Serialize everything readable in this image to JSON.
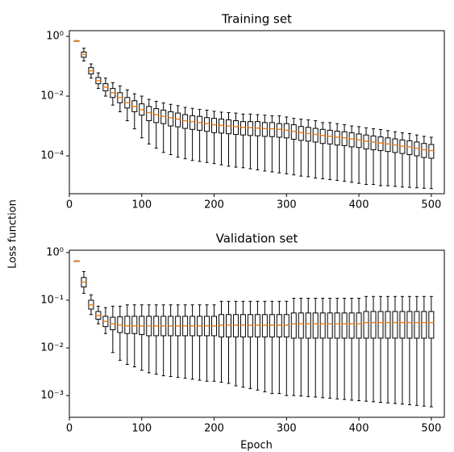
{
  "ylabel": "Loss function",
  "xlabel": "Epoch",
  "chart_data": [
    {
      "type": "box",
      "title": "Training set",
      "yscale": "log",
      "color": "#000000",
      "median_color": "#ff7f0e",
      "xlim": [
        0,
        518
      ],
      "xticks": [
        0,
        100,
        200,
        300,
        400,
        500
      ],
      "ylim": [
        5.4e-06,
        1.55
      ],
      "yticks": [
        {
          "value": 1,
          "label": "10⁰"
        },
        {
          "value": 0.01,
          "label": "10⁻²"
        },
        {
          "value": 0.0001,
          "label": "10⁻⁴"
        }
      ],
      "x": [
        10,
        20,
        30,
        40,
        50,
        60,
        70,
        80,
        90,
        100,
        110,
        120,
        130,
        140,
        150,
        160,
        170,
        180,
        190,
        200,
        210,
        220,
        230,
        240,
        250,
        260,
        270,
        280,
        290,
        300,
        310,
        320,
        330,
        340,
        350,
        360,
        370,
        380,
        390,
        400,
        410,
        420,
        430,
        440,
        450,
        460,
        470,
        480,
        490,
        500
      ],
      "low": [
        0.68,
        0.15,
        0.04,
        0.018,
        0.01,
        0.005,
        0.003,
        0.0015,
        0.0008,
        0.0004,
        0.00025,
        0.00018,
        0.00013,
        0.00011,
        9e-05,
        8e-05,
        7e-05,
        6.5e-05,
        6e-05,
        5.5e-05,
        5e-05,
        4.5e-05,
        4.2e-05,
        4e-05,
        3.7e-05,
        3.4e-05,
        3.1e-05,
        2.9e-05,
        2.7e-05,
        2.5e-05,
        2.3e-05,
        2.1e-05,
        2e-05,
        1.8e-05,
        1.7e-05,
        1.6e-05,
        1.5e-05,
        1.4e-05,
        1.3e-05,
        1.2e-05,
        1.1e-05,
        1.1e-05,
        1e-05,
        1e-05,
        9.5e-06,
        9e-06,
        8.8e-06,
        8.5e-06,
        8.2e-06,
        8e-06
      ],
      "q1": [
        0.69,
        0.2,
        0.055,
        0.026,
        0.015,
        0.009,
        0.006,
        0.004,
        0.003,
        0.0023,
        0.0015,
        0.0013,
        0.0012,
        0.001,
        0.00094,
        0.00083,
        0.00077,
        0.00072,
        0.00066,
        0.0006,
        0.00058,
        0.00055,
        0.00052,
        0.0005,
        0.00048,
        0.00047,
        0.00045,
        0.00044,
        0.00042,
        0.0004,
        0.00036,
        0.00033,
        0.00031,
        0.00029,
        0.00026,
        0.00025,
        0.00023,
        0.00022,
        0.0002,
        0.00019,
        0.00017,
        0.00016,
        0.00015,
        0.00014,
        0.00013,
        0.00012,
        0.00011,
        0.0001,
        8.8e-05,
        8.3e-05
      ],
      "median": [
        0.7,
        0.25,
        0.07,
        0.033,
        0.02,
        0.013,
        0.009,
        0.006,
        0.0045,
        0.0035,
        0.0028,
        0.0024,
        0.0021,
        0.0019,
        0.0017,
        0.0015,
        0.0014,
        0.0013,
        0.0012,
        0.0011,
        0.00105,
        0.001,
        0.00095,
        0.0009,
        0.00088,
        0.00085,
        0.00082,
        0.0008,
        0.00077,
        0.00072,
        0.00066,
        0.0006,
        0.00056,
        0.00052,
        0.00048,
        0.00045,
        0.00042,
        0.0004,
        0.00037,
        0.00034,
        0.00031,
        0.00029,
        0.00027,
        0.00025,
        0.00023,
        0.00021,
        0.0002,
        0.00018,
        0.00016,
        0.00015
      ],
      "q3": [
        0.71,
        0.3,
        0.09,
        0.042,
        0.026,
        0.018,
        0.013,
        0.009,
        0.007,
        0.0055,
        0.0045,
        0.0038,
        0.0034,
        0.003,
        0.0027,
        0.0024,
        0.0022,
        0.0021,
        0.0019,
        0.0018,
        0.0017,
        0.0016,
        0.0015,
        0.0014,
        0.0014,
        0.0014,
        0.0013,
        0.0013,
        0.0012,
        0.0012,
        0.0011,
        0.00096,
        0.0009,
        0.00083,
        0.00077,
        0.00072,
        0.00067,
        0.00064,
        0.00059,
        0.00054,
        0.0005,
        0.00046,
        0.00043,
        0.0004,
        0.00037,
        0.00034,
        0.00032,
        0.00029,
        0.00026,
        0.00024
      ],
      "high": [
        0.72,
        0.4,
        0.12,
        0.06,
        0.04,
        0.028,
        0.022,
        0.016,
        0.012,
        0.01,
        0.0078,
        0.0067,
        0.0059,
        0.0053,
        0.0048,
        0.0042,
        0.0039,
        0.0036,
        0.0034,
        0.0031,
        0.0029,
        0.0028,
        0.0027,
        0.0025,
        0.0025,
        0.0024,
        0.0023,
        0.0022,
        0.0022,
        0.002,
        0.0018,
        0.0017,
        0.0016,
        0.0015,
        0.0013,
        0.0013,
        0.0012,
        0.0011,
        0.001,
        0.00095,
        0.00087,
        0.00081,
        0.00076,
        0.0007,
        0.00064,
        0.00059,
        0.00056,
        0.0005,
        0.00045,
        0.00042
      ]
    },
    {
      "type": "box",
      "title": "Validation set",
      "yscale": "log",
      "color": "#000000",
      "median_color": "#ff7f0e",
      "xlim": [
        0,
        518
      ],
      "xticks": [
        0,
        100,
        200,
        300,
        400,
        500
      ],
      "ylim": [
        0.00035,
        1.12
      ],
      "yticks": [
        {
          "value": 1,
          "label": "10⁰"
        },
        {
          "value": 0.1,
          "label": "10⁻¹"
        },
        {
          "value": 0.01,
          "label": "10⁻²"
        },
        {
          "value": 0.001,
          "label": "10⁻³"
        }
      ],
      "x": [
        10,
        20,
        30,
        40,
        50,
        60,
        70,
        80,
        90,
        100,
        110,
        120,
        130,
        140,
        150,
        160,
        170,
        180,
        190,
        200,
        210,
        220,
        230,
        240,
        250,
        260,
        270,
        280,
        290,
        300,
        310,
        320,
        330,
        340,
        350,
        360,
        370,
        380,
        390,
        400,
        410,
        420,
        430,
        440,
        450,
        460,
        470,
        480,
        490,
        500
      ],
      "low": [
        0.65,
        0.14,
        0.05,
        0.032,
        0.02,
        0.008,
        0.0055,
        0.0045,
        0.004,
        0.0034,
        0.003,
        0.0028,
        0.0026,
        0.0025,
        0.0024,
        0.0023,
        0.0022,
        0.0021,
        0.002,
        0.002,
        0.0019,
        0.0018,
        0.0016,
        0.0015,
        0.0014,
        0.0013,
        0.0012,
        0.0011,
        0.0011,
        0.001,
        0.001,
        0.00098,
        0.00095,
        0.00093,
        0.0009,
        0.00088,
        0.00085,
        0.00083,
        0.0008,
        0.00078,
        0.00076,
        0.00074,
        0.00072,
        0.0007,
        0.00068,
        0.00066,
        0.00064,
        0.00062,
        0.0006,
        0.00058
      ],
      "q1": [
        0.655,
        0.19,
        0.065,
        0.04,
        0.028,
        0.024,
        0.021,
        0.02,
        0.02,
        0.019,
        0.018,
        0.018,
        0.018,
        0.018,
        0.018,
        0.018,
        0.018,
        0.018,
        0.018,
        0.018,
        0.017,
        0.017,
        0.017,
        0.017,
        0.017,
        0.017,
        0.017,
        0.017,
        0.017,
        0.017,
        0.016,
        0.016,
        0.016,
        0.016,
        0.016,
        0.016,
        0.016,
        0.016,
        0.016,
        0.016,
        0.016,
        0.016,
        0.016,
        0.016,
        0.016,
        0.016,
        0.016,
        0.016,
        0.016,
        0.016
      ],
      "median": [
        0.66,
        0.24,
        0.08,
        0.048,
        0.036,
        0.032,
        0.03,
        0.029,
        0.029,
        0.029,
        0.029,
        0.029,
        0.029,
        0.029,
        0.029,
        0.029,
        0.029,
        0.029,
        0.029,
        0.029,
        0.03,
        0.03,
        0.03,
        0.03,
        0.03,
        0.03,
        0.03,
        0.03,
        0.03,
        0.03,
        0.032,
        0.032,
        0.032,
        0.032,
        0.032,
        0.032,
        0.032,
        0.032,
        0.032,
        0.032,
        0.034,
        0.034,
        0.034,
        0.034,
        0.034,
        0.034,
        0.034,
        0.034,
        0.034,
        0.034
      ],
      "q3": [
        0.665,
        0.3,
        0.1,
        0.058,
        0.046,
        0.044,
        0.045,
        0.046,
        0.046,
        0.046,
        0.046,
        0.046,
        0.046,
        0.046,
        0.046,
        0.046,
        0.046,
        0.046,
        0.046,
        0.046,
        0.05,
        0.05,
        0.05,
        0.05,
        0.05,
        0.05,
        0.05,
        0.05,
        0.05,
        0.05,
        0.054,
        0.054,
        0.054,
        0.054,
        0.054,
        0.054,
        0.054,
        0.054,
        0.054,
        0.054,
        0.058,
        0.058,
        0.058,
        0.058,
        0.058,
        0.058,
        0.058,
        0.058,
        0.058,
        0.058
      ],
      "high": [
        0.67,
        0.4,
        0.13,
        0.075,
        0.07,
        0.075,
        0.075,
        0.08,
        0.08,
        0.08,
        0.08,
        0.08,
        0.08,
        0.08,
        0.08,
        0.08,
        0.08,
        0.08,
        0.08,
        0.08,
        0.095,
        0.095,
        0.095,
        0.095,
        0.095,
        0.095,
        0.095,
        0.095,
        0.095,
        0.095,
        0.11,
        0.11,
        0.11,
        0.11,
        0.11,
        0.11,
        0.11,
        0.11,
        0.11,
        0.11,
        0.12,
        0.12,
        0.12,
        0.12,
        0.12,
        0.12,
        0.12,
        0.12,
        0.12,
        0.12
      ]
    }
  ]
}
